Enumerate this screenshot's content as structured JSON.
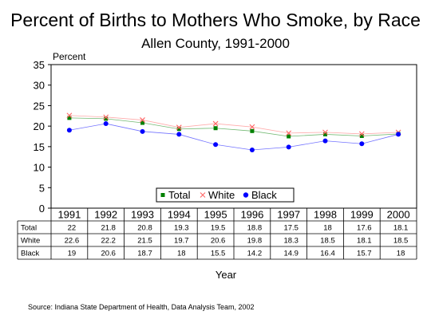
{
  "title": "Percent of Births to Mothers Who Smoke, by Race",
  "subtitle": "Allen County, 1991-2000",
  "source": "Source:  Indiana State Department of Health, Data Analysis Team, 2002",
  "chart_data": {
    "type": "line",
    "ylabel": "Percent",
    "xlabel": "Year",
    "ylim": [
      0,
      35
    ],
    "yticks": [
      0,
      5,
      10,
      15,
      20,
      25,
      30,
      35
    ],
    "grid": false,
    "legend_position": "bottom-center",
    "x": [
      "1991",
      "1992",
      "1993",
      "1994",
      "1995",
      "1996",
      "1997",
      "1998",
      "1999",
      "2000"
    ],
    "series": [
      {
        "name": "Total",
        "color": "#008000",
        "marker": "square",
        "values": [
          22,
          21.8,
          20.8,
          19.3,
          19.5,
          18.8,
          17.5,
          18,
          17.6,
          18.1
        ]
      },
      {
        "name": "White",
        "color": "#ff6666",
        "marker": "x",
        "values": [
          22.6,
          22.2,
          21.5,
          19.7,
          20.6,
          19.8,
          18.3,
          18.5,
          18.1,
          18.5
        ]
      },
      {
        "name": "Black",
        "color": "#0000ff",
        "marker": "circle",
        "values": [
          19,
          20.6,
          18.7,
          18,
          15.5,
          14.2,
          14.9,
          16.4,
          15.7,
          18
        ]
      }
    ],
    "table": {
      "rows": [
        {
          "label": "Total",
          "values": [
            "22",
            "21.8",
            "20.8",
            "19.3",
            "19.5",
            "18.8",
            "17.5",
            "18",
            "17.6",
            "18.1"
          ]
        },
        {
          "label": "White",
          "values": [
            "22.6",
            "22.2",
            "21.5",
            "19.7",
            "20.6",
            "19.8",
            "18.3",
            "18.5",
            "18.1",
            "18.5"
          ]
        },
        {
          "label": "Black",
          "values": [
            "19",
            "20.6",
            "18.7",
            "18",
            "15.5",
            "14.2",
            "14.9",
            "16.4",
            "15.7",
            "18"
          ]
        }
      ]
    }
  }
}
